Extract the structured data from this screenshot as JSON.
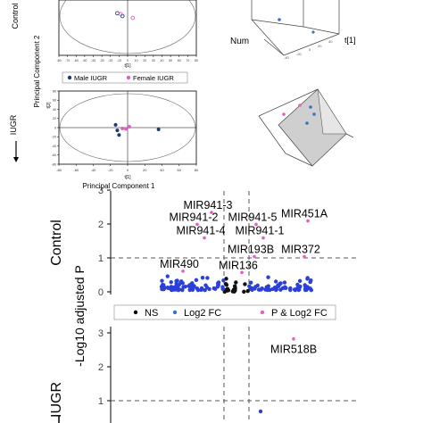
{
  "panels": {
    "rowlabels": {
      "control_small": "Control",
      "iugr_small": "IUGR",
      "control_big": "Control",
      "iugr_big": "IUGR"
    },
    "pca": {
      "ylabel_mid": "Principal Component 2",
      "xlabel_bottom": "Principal Component 1",
      "t1_label": "t[1]",
      "t2_label": "t[2]",
      "num_label": "Num",
      "legend": [
        {
          "name": "Male IUGR",
          "color": "#1f3a6e"
        },
        {
          "name": "Female IUGR",
          "color": "#e060c0"
        }
      ]
    },
    "volcano": {
      "ylabel": "-Log10 adjusted P",
      "legend": [
        {
          "name": "NS",
          "color": "#000000"
        },
        {
          "name": "Log2 FC",
          "color": "#3a70c8"
        },
        {
          "name": "P & Log2 FC",
          "color": "#e060c0"
        }
      ]
    }
  },
  "chart_data": [
    {
      "type": "scatter",
      "title": "",
      "xlabel": "t[1]",
      "ylabel": "t[2]",
      "xlim": [
        -80,
        80
      ],
      "x_ticks": [
        -80,
        -70,
        -60,
        -50,
        -40,
        -30,
        -20,
        -10,
        0,
        10,
        20,
        30,
        40,
        50,
        60,
        70,
        80
      ],
      "series": [
        {
          "name": "Male IUGR",
          "color": "#1f3a6e",
          "points": [
            [
              -12,
              6
            ],
            [
              -6,
              0
            ]
          ]
        },
        {
          "name": "Female IUGR",
          "color": "#e060c0",
          "points": [
            [
              -8,
              4
            ],
            [
              6,
              -4
            ]
          ]
        }
      ]
    },
    {
      "type": "scatter",
      "title": "",
      "xlabel": "t[1]",
      "ylabel": "t[2]",
      "xlim": [
        -80,
        80
      ],
      "ylim": [
        -80,
        80
      ],
      "y_ticks": [
        -80,
        -60,
        -40,
        -20,
        0,
        20,
        40,
        60,
        80
      ],
      "x_ticks": [
        -80,
        -60,
        -40,
        -20,
        0,
        20,
        40,
        60,
        80
      ],
      "series": [
        {
          "name": "Male IUGR",
          "color": "#1f3a6e",
          "points": [
            [
              -14,
              6
            ],
            [
              -12,
              -6
            ],
            [
              -10,
              -16
            ],
            [
              36,
              -4
            ]
          ]
        },
        {
          "name": "Female IUGR",
          "color": "#e060c0",
          "points": [
            [
              -6,
              -2
            ],
            [
              -2,
              -3
            ],
            [
              2,
              2
            ]
          ]
        }
      ]
    },
    {
      "type": "scatter",
      "title": "",
      "ylabel": "-Log10 adjusted P",
      "ylim": [
        0,
        3
      ],
      "y_ticks": [
        0,
        1,
        2,
        3
      ],
      "threshold_p": 1,
      "threshold_fc": [
        -1,
        1
      ],
      "annotations": [
        {
          "label": "MIR941-3",
          "x": -1.6,
          "y": 2.55
        },
        {
          "label": "MIR941-2",
          "x": -2.4,
          "y": 2.2
        },
        {
          "label": "MIR941-5",
          "x": 0.9,
          "y": 2.2
        },
        {
          "label": "MIR451A",
          "x": 3.8,
          "y": 2.3
        },
        {
          "label": "MIR941-4",
          "x": -2.0,
          "y": 1.8
        },
        {
          "label": "MIR941-1",
          "x": 1.3,
          "y": 1.8
        },
        {
          "label": "MIR193B",
          "x": 0.8,
          "y": 1.25
        },
        {
          "label": "MIR372",
          "x": 3.6,
          "y": 1.25
        },
        {
          "label": "MIR490",
          "x": -3.2,
          "y": 0.82
        },
        {
          "label": "MIR136",
          "x": 0.1,
          "y": 0.78
        }
      ]
    },
    {
      "type": "scatter",
      "title": "",
      "ylim": [
        0,
        3
      ],
      "y_ticks": [
        1,
        2,
        3
      ],
      "threshold_p": 1,
      "annotations": [
        {
          "label": "MIR518B",
          "x": 3.2,
          "y": 2.85
        }
      ]
    }
  ]
}
